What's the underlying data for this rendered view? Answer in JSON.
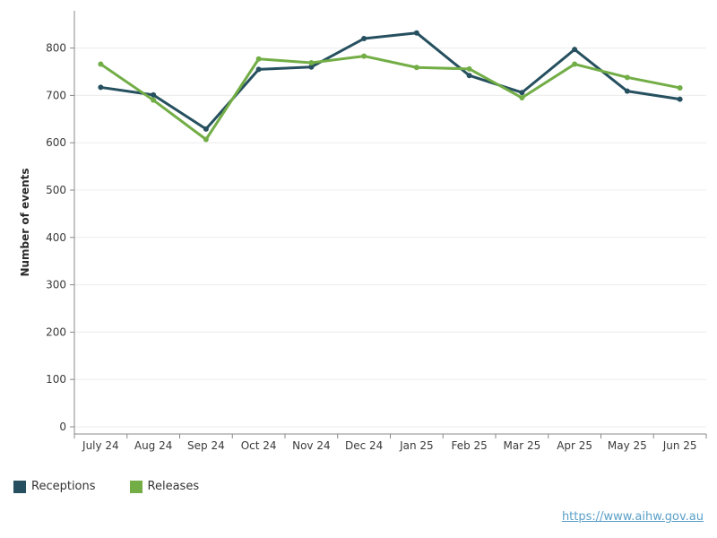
{
  "chart_data": {
    "type": "line",
    "categories": [
      "July 24",
      "Aug 24",
      "Sep 24",
      "Oct 24",
      "Nov 24",
      "Dec 24",
      "Jan 25",
      "Feb 25",
      "Mar 25",
      "Apr 25",
      "May 25",
      "Jun 25"
    ],
    "series": [
      {
        "name": "Receptions",
        "color": "#26505f",
        "values": [
          717,
          701,
          629,
          755,
          760,
          820,
          832,
          742,
          706,
          797,
          709,
          692
        ]
      },
      {
        "name": "Releases",
        "color": "#72ad46",
        "values": [
          766,
          690,
          607,
          777,
          769,
          783,
          759,
          756,
          695,
          766,
          738,
          716
        ]
      }
    ],
    "title": "",
    "xlabel": "",
    "ylabel": "Number of events",
    "ylim": [
      0,
      880
    ],
    "yticks": [
      0,
      100,
      200,
      300,
      400,
      500,
      600,
      700,
      800
    ],
    "grid": true,
    "legend_position": "bottom-left"
  },
  "source": {
    "url_text": "https://www.aihw.gov.au"
  }
}
